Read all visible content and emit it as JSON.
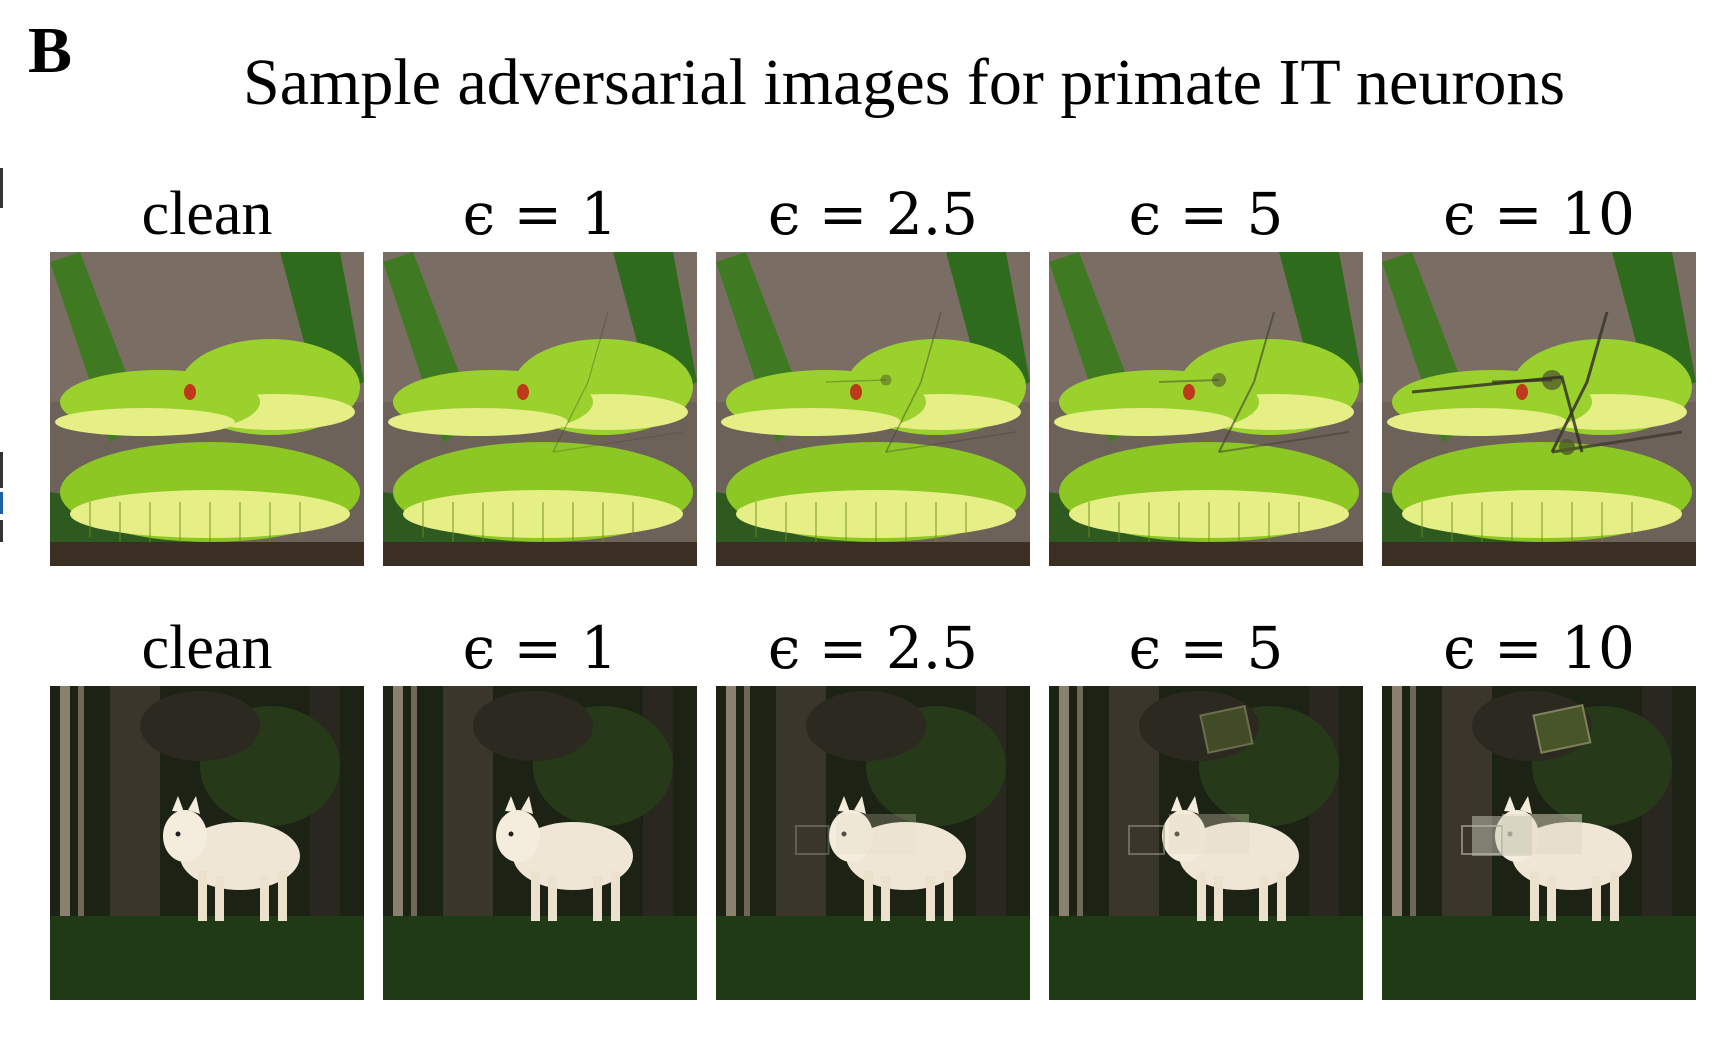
{
  "panel": {
    "letter": "B",
    "title": "Sample adversarial images for primate IT neurons"
  },
  "rows": [
    {
      "subject": "snake",
      "labels": [
        "clean",
        "ϵ = 1",
        "ϵ = 2.5",
        "ϵ = 5",
        "ϵ = 10"
      ],
      "perturbation_levels": [
        0,
        1,
        2.5,
        5,
        10
      ]
    },
    {
      "subject": "wolf",
      "labels": [
        "clean",
        "ϵ = 1",
        "ϵ = 2.5",
        "ϵ = 5",
        "ϵ = 10"
      ],
      "perturbation_levels": [
        0,
        1,
        2.5,
        5,
        10
      ]
    }
  ],
  "colors": {
    "snake_body": "#9bd12c",
    "snake_belly": "#e6ee86",
    "snake_eye": "#c0391b",
    "snake_background": "#6d6259",
    "leaf": "#3f7a22",
    "wolf_fur": "#efe6d6",
    "forest_dark": "#14180f",
    "grass": "#1f3a14"
  }
}
